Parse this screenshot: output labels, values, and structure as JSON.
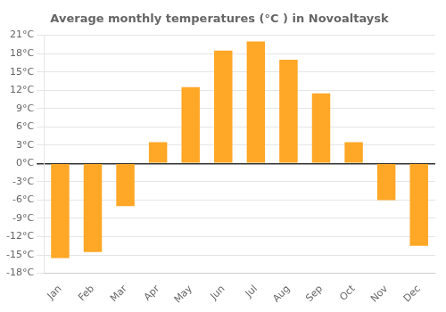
{
  "chart_data": {
    "type": "bar",
    "title": "Average monthly temperatures (°C ) in Novoaltaysk",
    "categories": [
      "Jan",
      "Feb",
      "Mar",
      "Apr",
      "May",
      "Jun",
      "Jul",
      "Aug",
      "Sep",
      "Oct",
      "Nov",
      "Dec"
    ],
    "values": [
      -15.5,
      -14.5,
      -7.0,
      3.5,
      12.5,
      18.5,
      20.0,
      17.0,
      11.5,
      3.5,
      -6.0,
      -13.5
    ],
    "color": "#FFA726",
    "ylim": [
      -18,
      21
    ],
    "yticks": [
      {
        "value": -18,
        "label": "-18°C"
      },
      {
        "value": -15,
        "label": "-15°C"
      },
      {
        "value": -12,
        "label": "-12°C"
      },
      {
        "value": -9,
        "label": "-9°C"
      },
      {
        "value": -6,
        "label": "-6°C"
      },
      {
        "value": -3,
        "label": "-3°C"
      },
      {
        "value": 0,
        "label": "0°C"
      },
      {
        "value": 3,
        "label": "3°C"
      },
      {
        "value": 6,
        "label": "6°C"
      },
      {
        "value": 9,
        "label": "9°C"
      },
      {
        "value": 12,
        "label": "12°C"
      },
      {
        "value": 15,
        "label": "15°C"
      },
      {
        "value": 18,
        "label": "18°C"
      },
      {
        "value": 21,
        "label": "21°C"
      }
    ],
    "grid": true
  }
}
